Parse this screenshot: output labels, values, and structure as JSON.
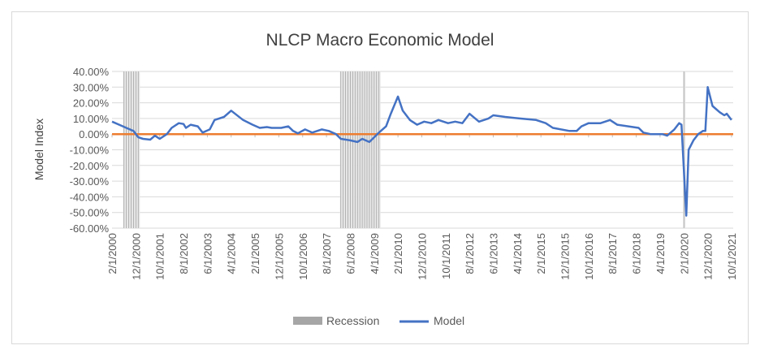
{
  "chart_data": {
    "type": "line",
    "title": "NLCP Macro Economic Model",
    "xlabel": "",
    "ylabel": "Model Index",
    "ylim": [
      -60,
      40
    ],
    "y_ticks": [
      "40.00%",
      "30.00%",
      "20.00%",
      "10.00%",
      "0.00%",
      "-10.00%",
      "-20.00%",
      "-30.00%",
      "-40.00%",
      "-50.00%",
      "-60.00%"
    ],
    "x_ticks": [
      "2/1/2000",
      "12/1/2000",
      "10/1/2001",
      "8/1/2002",
      "6/1/2003",
      "4/1/2004",
      "2/1/2005",
      "12/1/2005",
      "10/1/2006",
      "8/1/2007",
      "6/1/2008",
      "4/1/2009",
      "2/1/2010",
      "12/1/2010",
      "10/1/2011",
      "8/1/2012",
      "6/1/2013",
      "4/1/2014",
      "2/1/2015",
      "12/1/2015",
      "10/1/2016",
      "8/1/2017",
      "6/1/2018",
      "4/1/2019",
      "2/1/2020",
      "12/1/2020",
      "10/1/2021"
    ],
    "grid": "horizontal",
    "legend": "bottom",
    "colors": {
      "model": "#4472c4",
      "zero_line": "#ed7d31",
      "recession": "#a6a6a6"
    },
    "series": [
      {
        "name": "Model",
        "points": [
          [
            "2/1/2000",
            8
          ],
          [
            "5/1/2000",
            6
          ],
          [
            "8/1/2000",
            4
          ],
          [
            "11/1/2000",
            2
          ],
          [
            "1/1/2001",
            -2
          ],
          [
            "3/1/2001",
            -3
          ],
          [
            "6/1/2001",
            -3.5
          ],
          [
            "8/1/2001",
            -1
          ],
          [
            "10/1/2001",
            -3
          ],
          [
            "1/1/2002",
            0
          ],
          [
            "3/1/2002",
            4
          ],
          [
            "6/1/2002",
            7
          ],
          [
            "8/1/2002",
            6.5
          ],
          [
            "9/1/2002",
            4
          ],
          [
            "11/1/2002",
            6
          ],
          [
            "2/1/2003",
            5
          ],
          [
            "4/1/2003",
            1
          ],
          [
            "7/1/2003",
            3
          ],
          [
            "9/1/2003",
            9
          ],
          [
            "1/1/2004",
            11
          ],
          [
            "4/1/2004",
            15
          ],
          [
            "9/1/2004",
            9
          ],
          [
            "1/1/2005",
            6
          ],
          [
            "4/1/2005",
            4
          ],
          [
            "7/1/2005",
            4.5
          ],
          [
            "9/1/2005",
            4
          ],
          [
            "1/1/2006",
            4
          ],
          [
            "4/1/2006",
            5
          ],
          [
            "6/1/2006",
            2
          ],
          [
            "8/1/2006",
            0.5
          ],
          [
            "11/1/2006",
            3
          ],
          [
            "2/1/2007",
            1
          ],
          [
            "6/1/2007",
            3
          ],
          [
            "9/1/2007",
            2
          ],
          [
            "12/1/2007",
            0
          ],
          [
            "2/1/2008",
            -3
          ],
          [
            "6/1/2008",
            -4
          ],
          [
            "9/1/2008",
            -5
          ],
          [
            "11/1/2008",
            -3
          ],
          [
            "2/1/2009",
            -5
          ],
          [
            "4/1/2009",
            -2
          ],
          [
            "6/1/2009",
            1
          ],
          [
            "9/1/2009",
            5
          ],
          [
            "11/1/2009",
            13
          ],
          [
            "2/1/2010",
            24
          ],
          [
            "4/1/2010",
            15
          ],
          [
            "7/1/2010",
            9
          ],
          [
            "10/1/2010",
            6
          ],
          [
            "1/1/2011",
            8
          ],
          [
            "4/1/2011",
            7
          ],
          [
            "7/1/2011",
            9
          ],
          [
            "11/1/2011",
            7
          ],
          [
            "2/1/2012",
            8
          ],
          [
            "5/1/2012",
            7
          ],
          [
            "8/1/2012",
            13
          ],
          [
            "12/1/2012",
            8
          ],
          [
            "4/1/2013",
            10
          ],
          [
            "6/1/2013",
            12
          ],
          [
            "11/1/2013",
            11
          ],
          [
            "5/1/2014",
            10
          ],
          [
            "12/1/2014",
            9
          ],
          [
            "4/1/2015",
            7
          ],
          [
            "7/1/2015",
            4
          ],
          [
            "2/1/2016",
            2
          ],
          [
            "5/1/2016",
            2
          ],
          [
            "7/1/2016",
            5
          ],
          [
            "10/1/2016",
            7
          ],
          [
            "3/1/2017",
            7
          ],
          [
            "7/1/2017",
            9
          ],
          [
            "10/1/2017",
            6
          ],
          [
            "7/1/2018",
            4
          ],
          [
            "9/1/2018",
            1
          ],
          [
            "12/1/2018",
            0
          ],
          [
            "5/1/2019",
            0
          ],
          [
            "7/1/2019",
            -1
          ],
          [
            "10/1/2019",
            3
          ],
          [
            "12/1/2019",
            7
          ],
          [
            "1/1/2020",
            6
          ],
          [
            "3/1/2020",
            -52
          ],
          [
            "4/1/2020",
            -10
          ],
          [
            "6/1/2020",
            -4
          ],
          [
            "8/1/2020",
            0
          ],
          [
            "10/1/2020",
            2
          ],
          [
            "11/1/2020",
            2
          ],
          [
            "12/1/2020",
            30
          ],
          [
            "2/1/2021",
            18
          ],
          [
            "5/1/2021",
            14
          ],
          [
            "7/1/2021",
            12
          ],
          [
            "8/1/2021",
            13
          ],
          [
            "10/1/2021",
            9
          ]
        ]
      },
      {
        "name": "Recession",
        "ranges": [
          [
            "7/1/2000",
            "1/1/2001"
          ],
          [
            "2/1/2008",
            "6/1/2009"
          ],
          [
            "2/1/2020",
            "2/1/2020"
          ]
        ]
      }
    ],
    "x_start": "2/1/2000",
    "x_end": "10/1/2021"
  }
}
